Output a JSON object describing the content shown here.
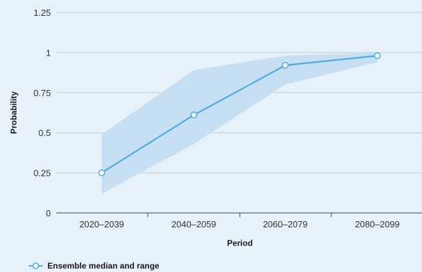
{
  "chart_data": {
    "type": "line",
    "categories": [
      "2020–2039",
      "2040–2059",
      "2060–2079",
      "2080–2099"
    ],
    "series": [
      {
        "name": "Ensemble median and range",
        "values": [
          0.25,
          0.61,
          0.92,
          0.98
        ],
        "range_low": [
          0.12,
          0.43,
          0.8,
          0.94
        ],
        "range_high": [
          0.49,
          0.89,
          0.98,
          1.0
        ]
      }
    ],
    "xlabel": "Period",
    "ylabel": "Probability",
    "ylim": [
      0,
      1.25
    ],
    "yticks": [
      0,
      0.25,
      0.5,
      0.75,
      1,
      1.25
    ],
    "ytick_labels": [
      "0",
      "0.25",
      "0.5",
      "0.75",
      "1",
      "1.25"
    ],
    "grid": true,
    "legend_position": "bottom-left",
    "colors": {
      "line": "#4eaee3",
      "band": "#c6dff2",
      "grid": "#c5ced6",
      "axis": "#444444",
      "background": "#e6f1fa"
    }
  }
}
